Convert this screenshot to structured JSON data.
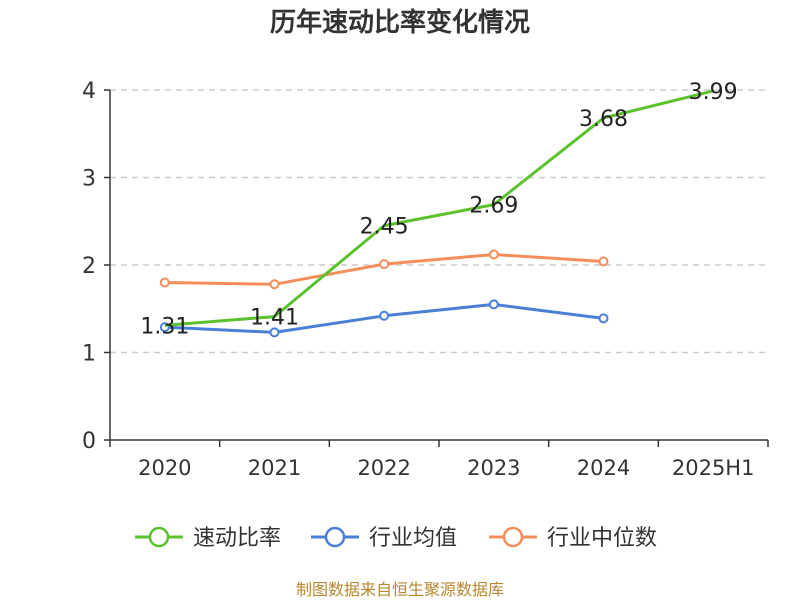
{
  "chart_data": {
    "type": "line",
    "title": "历年速动比率变化情况",
    "categories": [
      "2020",
      "2021",
      "2022",
      "2023",
      "2024",
      "2025H1"
    ],
    "ylim": [
      0,
      4
    ],
    "yticks": [
      0,
      1,
      2,
      3,
      4
    ],
    "grid": true,
    "legend_position": "bottom",
    "series": [
      {
        "name": "速动比率",
        "color": "#5bc12d",
        "values": [
          1.31,
          1.41,
          2.45,
          2.69,
          3.68,
          3.99
        ],
        "labels": [
          "1.31",
          "1.41",
          "2.45",
          "2.69",
          "3.68",
          "3.99"
        ],
        "show_markers": false
      },
      {
        "name": "行业均值",
        "color": "#4a7fd8",
        "values": [
          1.29,
          1.23,
          1.42,
          1.55,
          1.39,
          null
        ],
        "show_markers": true
      },
      {
        "name": "行业中位数",
        "color": "#f58d5a",
        "values": [
          1.8,
          1.78,
          2.01,
          2.12,
          2.04,
          null
        ],
        "show_markers": true
      }
    ]
  },
  "source": "制图数据来自恒生聚源数据库"
}
